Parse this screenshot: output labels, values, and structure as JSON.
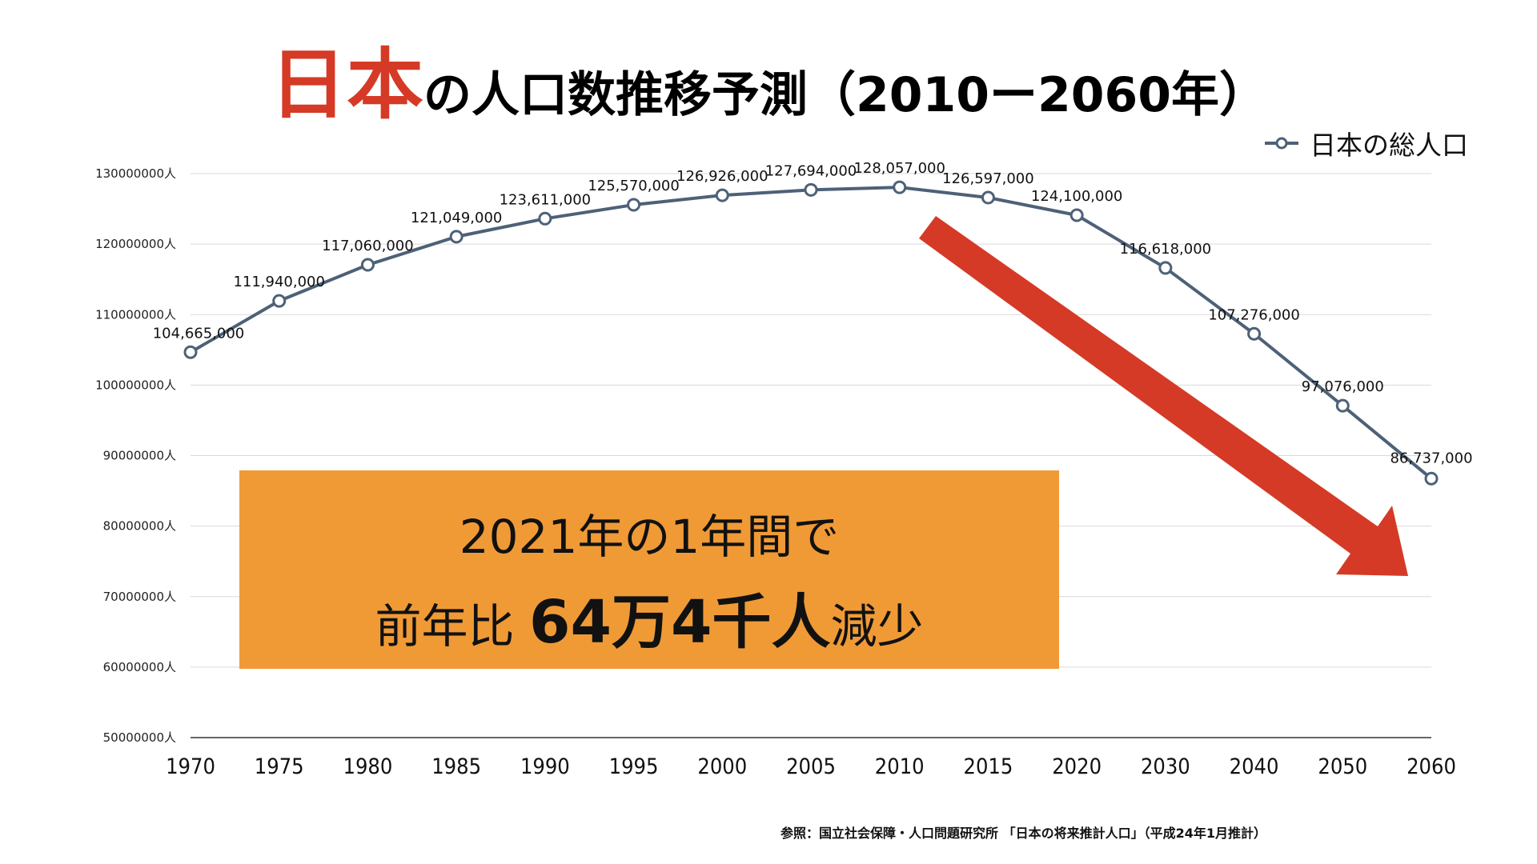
{
  "title": {
    "accent": "日本",
    "rest": "の人口数推移予測（2010ー2060年）"
  },
  "legend": {
    "label": "日本の総人口"
  },
  "callout": {
    "line1": "2021年の1年間で",
    "line2_prefix": "前年比",
    "line2_big": "64万4千人",
    "line2_suffix": "減少"
  },
  "source": "参照：国立社会保障・人口問題研究所 「日本の将来推計人口」（平成24年1月推計）",
  "colors": {
    "title_accent": "#d53a26",
    "series_line": "#4d6177",
    "callout_bg": "#f09a36",
    "arrow": "#d53a26",
    "grid": "#d9d9d9"
  },
  "chart_data": {
    "type": "line",
    "categories": [
      "1970",
      "1975",
      "1980",
      "1985",
      "1990",
      "1995",
      "2000",
      "2005",
      "2010",
      "2015",
      "2020",
      "2030",
      "2040",
      "2050",
      "2060"
    ],
    "series": [
      {
        "name": "日本の総人口",
        "values": [
          104665000,
          111940000,
          117060000,
          121049000,
          123611000,
          125570000,
          126926000,
          127694000,
          128057000,
          126597000,
          124100000,
          116618000,
          107276000,
          97076000,
          86737000
        ],
        "labels": [
          "104,665,000",
          "111,940,000",
          "117,060,000",
          "121,049,000",
          "123,611,000",
          "125,570,000",
          "126,926,000",
          "127,694,000",
          "128,057,000",
          "126,597,000",
          "124,100,000",
          "116,618,000",
          "107,276,000",
          "97,076,000",
          "86,737,000"
        ]
      }
    ],
    "yticks": [
      {
        "value": 130000000,
        "label": "130000000人"
      },
      {
        "value": 120000000,
        "label": "120000000人"
      },
      {
        "value": 110000000,
        "label": "110000000人"
      },
      {
        "value": 100000000,
        "label": "100000000人"
      },
      {
        "value": 90000000,
        "label": "90000000人"
      },
      {
        "value": 80000000,
        "label": "80000000人"
      },
      {
        "value": 70000000,
        "label": "70000000人"
      },
      {
        "value": 60000000,
        "label": "60000000人"
      },
      {
        "value": 50000000,
        "label": "50000000人"
      }
    ],
    "ylim": [
      50000000,
      130000000
    ],
    "grid": true,
    "legend_position": "top-right",
    "annotation": "downward-arrow"
  }
}
